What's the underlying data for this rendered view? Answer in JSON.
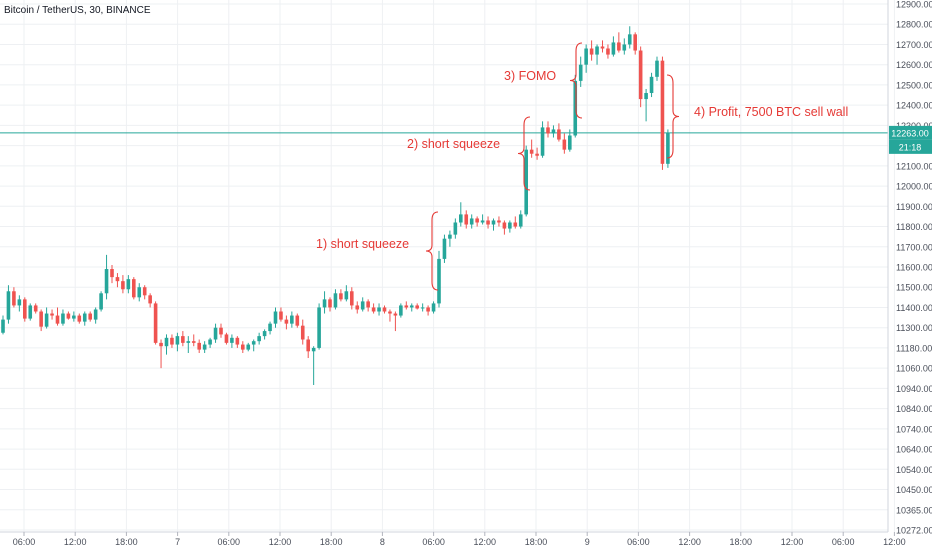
{
  "header": {
    "symbol_label": "Bitcoin / TetherUS, 30, BINANCE"
  },
  "colors": {
    "up": "#26a69a",
    "down": "#ef5350",
    "grid": "#eef0f3",
    "axis_text": "#4a4f5a",
    "annotation": "#e53935",
    "price_line": "#26a69a"
  },
  "price_axis": {
    "ticks": [
      12900,
      12800,
      12700,
      12600,
      12500,
      12400,
      12300,
      12200,
      12100,
      12000,
      11900,
      11800,
      11700,
      11600,
      11500,
      11400,
      11300,
      11180,
      11060,
      10940,
      10840,
      10740,
      10640,
      10540,
      10450,
      10365,
      10272
    ],
    "tick_labels": [
      "12900.00",
      "12800.00",
      "12700.00",
      "12600.00",
      "12500.00",
      "12400.00",
      "12300.00",
      "12200.00",
      "12100.00",
      "12000.00",
      "11900.00",
      "11800.00",
      "11700.00",
      "11600.00",
      "11500.00",
      "11400.00",
      "11300.00",
      "11180.00",
      "11060.00",
      "10940.00",
      "10840.00",
      "10740.00",
      "10640.00",
      "10540.00",
      "10450.00",
      "10365.00",
      "10272.00"
    ],
    "current_price_label": "12263.00",
    "countdown_label": "21:18",
    "current_price": 12263
  },
  "time_axis": {
    "labels": [
      "06:00",
      "12:00",
      "18:00",
      "7",
      "06:00",
      "12:00",
      "18:00",
      "8",
      "06:00",
      "12:00",
      "18:00",
      "9",
      "06:00",
      "12:00",
      "18:00",
      "12:00",
      "06:00",
      "12:00"
    ]
  },
  "annotations": [
    {
      "text": "1) short squeeze"
    },
    {
      "text": "2) short squeeze"
    },
    {
      "text": "3) FOMO"
    },
    {
      "text": "4) Profit, 7500 BTC sell wall"
    }
  ],
  "chart_data": {
    "type": "candlestick",
    "title": "Bitcoin / TetherUS, 30, BINANCE",
    "ylim": [
      10272,
      12900
    ],
    "y_scale": "log",
    "grid": true,
    "candles": [
      {
        "o": 11270,
        "h": 11360,
        "l": 11260,
        "c": 11340
      },
      {
        "o": 11340,
        "h": 11510,
        "l": 11320,
        "c": 11480
      },
      {
        "o": 11480,
        "h": 11500,
        "l": 11400,
        "c": 11410
      },
      {
        "o": 11410,
        "h": 11460,
        "l": 11380,
        "c": 11440
      },
      {
        "o": 11440,
        "h": 11450,
        "l": 11330,
        "c": 11345
      },
      {
        "o": 11345,
        "h": 11420,
        "l": 11335,
        "c": 11410
      },
      {
        "o": 11410,
        "h": 11420,
        "l": 11370,
        "c": 11380
      },
      {
        "o": 11380,
        "h": 11390,
        "l": 11280,
        "c": 11305
      },
      {
        "o": 11305,
        "h": 11400,
        "l": 11295,
        "c": 11370
      },
      {
        "o": 11370,
        "h": 11390,
        "l": 11340,
        "c": 11360
      },
      {
        "o": 11360,
        "h": 11400,
        "l": 11310,
        "c": 11320
      },
      {
        "o": 11320,
        "h": 11390,
        "l": 11310,
        "c": 11370
      },
      {
        "o": 11370,
        "h": 11380,
        "l": 11340,
        "c": 11345
      },
      {
        "o": 11345,
        "h": 11380,
        "l": 11330,
        "c": 11360
      },
      {
        "o": 11360,
        "h": 11370,
        "l": 11320,
        "c": 11330
      },
      {
        "o": 11330,
        "h": 11380,
        "l": 11310,
        "c": 11370
      },
      {
        "o": 11370,
        "h": 11380,
        "l": 11330,
        "c": 11340
      },
      {
        "o": 11340,
        "h": 11400,
        "l": 11320,
        "c": 11390
      },
      {
        "o": 11390,
        "h": 11480,
        "l": 11380,
        "c": 11470
      },
      {
        "o": 11470,
        "h": 11660,
        "l": 11440,
        "c": 11590
      },
      {
        "o": 11590,
        "h": 11610,
        "l": 11520,
        "c": 11550
      },
      {
        "o": 11550,
        "h": 11570,
        "l": 11500,
        "c": 11530
      },
      {
        "o": 11530,
        "h": 11560,
        "l": 11470,
        "c": 11490
      },
      {
        "o": 11490,
        "h": 11560,
        "l": 11470,
        "c": 11540
      },
      {
        "o": 11540,
        "h": 11550,
        "l": 11440,
        "c": 11450
      },
      {
        "o": 11450,
        "h": 11520,
        "l": 11430,
        "c": 11500
      },
      {
        "o": 11500,
        "h": 11510,
        "l": 11440,
        "c": 11460
      },
      {
        "o": 11460,
        "h": 11470,
        "l": 11400,
        "c": 11420
      },
      {
        "o": 11420,
        "h": 11430,
        "l": 11200,
        "c": 11210
      },
      {
        "o": 11210,
        "h": 11230,
        "l": 11060,
        "c": 11190
      },
      {
        "o": 11190,
        "h": 11260,
        "l": 11140,
        "c": 11240
      },
      {
        "o": 11240,
        "h": 11260,
        "l": 11180,
        "c": 11200
      },
      {
        "o": 11200,
        "h": 11270,
        "l": 11160,
        "c": 11250
      },
      {
        "o": 11250,
        "h": 11280,
        "l": 11190,
        "c": 11210
      },
      {
        "o": 11210,
        "h": 11250,
        "l": 11150,
        "c": 11220
      },
      {
        "o": 11220,
        "h": 11260,
        "l": 11190,
        "c": 11210
      },
      {
        "o": 11210,
        "h": 11230,
        "l": 11150,
        "c": 11170
      },
      {
        "o": 11170,
        "h": 11220,
        "l": 11150,
        "c": 11200
      },
      {
        "o": 11200,
        "h": 11240,
        "l": 11180,
        "c": 11230
      },
      {
        "o": 11230,
        "h": 11320,
        "l": 11210,
        "c": 11300
      },
      {
        "o": 11300,
        "h": 11320,
        "l": 11240,
        "c": 11260
      },
      {
        "o": 11260,
        "h": 11270,
        "l": 11200,
        "c": 11210
      },
      {
        "o": 11210,
        "h": 11260,
        "l": 11180,
        "c": 11240
      },
      {
        "o": 11240,
        "h": 11250,
        "l": 11180,
        "c": 11200
      },
      {
        "o": 11200,
        "h": 11220,
        "l": 11150,
        "c": 11170
      },
      {
        "o": 11170,
        "h": 11210,
        "l": 11160,
        "c": 11200
      },
      {
        "o": 11200,
        "h": 11230,
        "l": 11160,
        "c": 11220
      },
      {
        "o": 11220,
        "h": 11270,
        "l": 11200,
        "c": 11250
      },
      {
        "o": 11250,
        "h": 11290,
        "l": 11230,
        "c": 11280
      },
      {
        "o": 11280,
        "h": 11330,
        "l": 11260,
        "c": 11320
      },
      {
        "o": 11320,
        "h": 11400,
        "l": 11300,
        "c": 11380
      },
      {
        "o": 11380,
        "h": 11400,
        "l": 11330,
        "c": 11340
      },
      {
        "o": 11340,
        "h": 11360,
        "l": 11290,
        "c": 11320
      },
      {
        "o": 11320,
        "h": 11380,
        "l": 11300,
        "c": 11360
      },
      {
        "o": 11360,
        "h": 11370,
        "l": 11300,
        "c": 11310
      },
      {
        "o": 11310,
        "h": 11340,
        "l": 11200,
        "c": 11230
      },
      {
        "o": 11230,
        "h": 11250,
        "l": 11120,
        "c": 11160
      },
      {
        "o": 11160,
        "h": 11190,
        "l": 10960,
        "c": 11180
      },
      {
        "o": 11180,
        "h": 11420,
        "l": 11170,
        "c": 11400
      },
      {
        "o": 11400,
        "h": 11480,
        "l": 11370,
        "c": 11440
      },
      {
        "o": 11440,
        "h": 11450,
        "l": 11380,
        "c": 11400
      },
      {
        "o": 11400,
        "h": 11490,
        "l": 11390,
        "c": 11470
      },
      {
        "o": 11470,
        "h": 11490,
        "l": 11430,
        "c": 11440
      },
      {
        "o": 11440,
        "h": 11510,
        "l": 11430,
        "c": 11480
      },
      {
        "o": 11480,
        "h": 11500,
        "l": 11390,
        "c": 11410
      },
      {
        "o": 11410,
        "h": 11430,
        "l": 11370,
        "c": 11390
      },
      {
        "o": 11390,
        "h": 11450,
        "l": 11380,
        "c": 11430
      },
      {
        "o": 11430,
        "h": 11440,
        "l": 11380,
        "c": 11400
      },
      {
        "o": 11400,
        "h": 11420,
        "l": 11370,
        "c": 11380
      },
      {
        "o": 11380,
        "h": 11420,
        "l": 11360,
        "c": 11400
      },
      {
        "o": 11400,
        "h": 11410,
        "l": 11370,
        "c": 11380
      },
      {
        "o": 11380,
        "h": 11390,
        "l": 11330,
        "c": 11370
      },
      {
        "o": 11370,
        "h": 11380,
        "l": 11280,
        "c": 11360
      },
      {
        "o": 11360,
        "h": 11420,
        "l": 11350,
        "c": 11410
      },
      {
        "o": 11410,
        "h": 11430,
        "l": 11390,
        "c": 11400
      },
      {
        "o": 11400,
        "h": 11420,
        "l": 11380,
        "c": 11410
      },
      {
        "o": 11410,
        "h": 11420,
        "l": 11390,
        "c": 11395
      },
      {
        "o": 11395,
        "h": 11420,
        "l": 11380,
        "c": 11400
      },
      {
        "o": 11400,
        "h": 11410,
        "l": 11360,
        "c": 11380
      },
      {
        "o": 11380,
        "h": 11430,
        "l": 11370,
        "c": 11420
      },
      {
        "o": 11420,
        "h": 11680,
        "l": 11400,
        "c": 11640
      },
      {
        "o": 11640,
        "h": 11760,
        "l": 11620,
        "c": 11740
      },
      {
        "o": 11740,
        "h": 11780,
        "l": 11700,
        "c": 11760
      },
      {
        "o": 11760,
        "h": 11840,
        "l": 11740,
        "c": 11820
      },
      {
        "o": 11820,
        "h": 11920,
        "l": 11800,
        "c": 11860
      },
      {
        "o": 11860,
        "h": 11880,
        "l": 11790,
        "c": 11810
      },
      {
        "o": 11810,
        "h": 11860,
        "l": 11790,
        "c": 11840
      },
      {
        "o": 11840,
        "h": 11850,
        "l": 11800,
        "c": 11820
      },
      {
        "o": 11820,
        "h": 11860,
        "l": 11810,
        "c": 11830
      },
      {
        "o": 11830,
        "h": 11850,
        "l": 11790,
        "c": 11810
      },
      {
        "o": 11810,
        "h": 11840,
        "l": 11780,
        "c": 11830
      },
      {
        "o": 11830,
        "h": 11850,
        "l": 11800,
        "c": 11820
      },
      {
        "o": 11820,
        "h": 11830,
        "l": 11760,
        "c": 11790
      },
      {
        "o": 11790,
        "h": 11830,
        "l": 11770,
        "c": 11820
      },
      {
        "o": 11820,
        "h": 11850,
        "l": 11790,
        "c": 11800
      },
      {
        "o": 11800,
        "h": 11880,
        "l": 11790,
        "c": 11860
      },
      {
        "o": 11860,
        "h": 12200,
        "l": 11850,
        "c": 12180
      },
      {
        "o": 12180,
        "h": 12230,
        "l": 12140,
        "c": 12160
      },
      {
        "o": 12160,
        "h": 12190,
        "l": 12130,
        "c": 12150
      },
      {
        "o": 12150,
        "h": 12320,
        "l": 12140,
        "c": 12290
      },
      {
        "o": 12290,
        "h": 12320,
        "l": 12240,
        "c": 12260
      },
      {
        "o": 12260,
        "h": 12300,
        "l": 12240,
        "c": 12280
      },
      {
        "o": 12280,
        "h": 12310,
        "l": 12220,
        "c": 12230
      },
      {
        "o": 12230,
        "h": 12260,
        "l": 12160,
        "c": 12180
      },
      {
        "o": 12180,
        "h": 12280,
        "l": 12170,
        "c": 12250
      },
      {
        "o": 12250,
        "h": 12550,
        "l": 12240,
        "c": 12520
      },
      {
        "o": 12520,
        "h": 12640,
        "l": 12490,
        "c": 12600
      },
      {
        "o": 12600,
        "h": 12700,
        "l": 12560,
        "c": 12680
      },
      {
        "o": 12680,
        "h": 12720,
        "l": 12620,
        "c": 12650
      },
      {
        "o": 12650,
        "h": 12700,
        "l": 12600,
        "c": 12690
      },
      {
        "o": 12690,
        "h": 12720,
        "l": 12660,
        "c": 12680
      },
      {
        "o": 12680,
        "h": 12700,
        "l": 12630,
        "c": 12650
      },
      {
        "o": 12650,
        "h": 12740,
        "l": 12640,
        "c": 12710
      },
      {
        "o": 12710,
        "h": 12760,
        "l": 12660,
        "c": 12670
      },
      {
        "o": 12670,
        "h": 12730,
        "l": 12650,
        "c": 12700
      },
      {
        "o": 12700,
        "h": 12790,
        "l": 12680,
        "c": 12750
      },
      {
        "o": 12750,
        "h": 12760,
        "l": 12650,
        "c": 12670
      },
      {
        "o": 12670,
        "h": 12690,
        "l": 12390,
        "c": 12430
      },
      {
        "o": 12430,
        "h": 12480,
        "l": 12320,
        "c": 12460
      },
      {
        "o": 12460,
        "h": 12560,
        "l": 12440,
        "c": 12540
      },
      {
        "o": 12540,
        "h": 12640,
        "l": 12520,
        "c": 12620
      },
      {
        "o": 12620,
        "h": 12640,
        "l": 12080,
        "c": 12110
      },
      {
        "o": 12110,
        "h": 12280,
        "l": 12090,
        "c": 12263
      }
    ]
  }
}
